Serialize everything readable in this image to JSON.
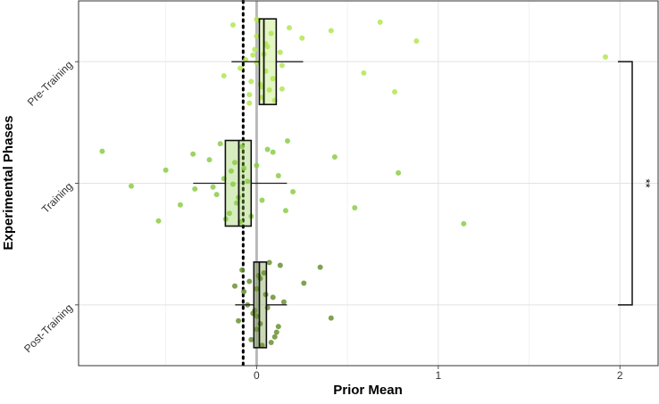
{
  "chart_data": {
    "type": "boxplot",
    "x_label": "Prior Mean",
    "y_label": "Experimental Phases",
    "categories": [
      "Pre-Training",
      "Training",
      "Post-Training"
    ],
    "xlim": [
      -0.98,
      2.21
    ],
    "xticks": [
      0,
      1,
      2
    ],
    "minor_grid": [
      -0.5,
      0.5,
      1.5
    ],
    "grid": true,
    "reference_lines": [
      {
        "value": 0,
        "style": "solid",
        "color": "#aaaaaa"
      },
      {
        "value": -0.074,
        "style": "dotted",
        "color": "#000000"
      }
    ],
    "significance": {
      "label": "**"
    },
    "groups": [
      {
        "color": "#b3e653",
        "q1": 0.015,
        "median": 0.04,
        "q3": 0.108,
        "whisker_low": -0.138,
        "whisker_high": 0.256,
        "points": [
          0.0,
          0.04,
          0.14,
          0.25,
          0.59,
          0.68,
          1.92,
          0.76,
          0.88,
          -0.18,
          -0.13,
          -0.06,
          -0.04,
          0.05,
          0.09,
          0.18,
          0.0,
          0.03,
          0.06,
          -0.03,
          0.41,
          0.14,
          0.1,
          -0.01,
          0.02,
          0.08,
          -0.09,
          -0.04,
          0.13,
          0.03,
          0.0,
          0.05,
          0.01,
          -0.02,
          0.07
        ]
      },
      {
        "color": "#8ccc48",
        "q1": -0.172,
        "median": -0.098,
        "q3": -0.03,
        "whisker_low": -0.349,
        "whisker_high": 0.167,
        "points": [
          -0.85,
          -0.69,
          -0.54,
          -0.5,
          -0.42,
          -0.35,
          -0.34,
          1.14,
          0.78,
          0.54,
          0.43,
          0.2,
          0.17,
          0.12,
          0.16,
          -0.26,
          -0.22,
          -0.2,
          -0.18,
          -0.15,
          -0.12,
          -0.1,
          -0.08,
          -0.05,
          -0.03,
          0.0,
          0.03,
          0.06,
          -0.13,
          -0.17,
          -0.07,
          -0.11,
          0.09,
          -0.24,
          -0.09,
          -0.14
        ]
      },
      {
        "color": "#6a9232",
        "q1": -0.015,
        "median": 0.015,
        "q3": 0.054,
        "whisker_low": -0.118,
        "whisker_high": 0.167,
        "points": [
          0.26,
          0.41,
          0.35,
          0.15,
          0.1,
          -0.12,
          -0.1,
          -0.08,
          -0.05,
          -0.03,
          0.0,
          0.02,
          0.04,
          0.06,
          0.08,
          -0.07,
          0.12,
          0.01,
          -0.01,
          0.03,
          0.05,
          0.0,
          0.02,
          -0.02,
          0.07,
          0.09,
          0.11,
          -0.04,
          0.0,
          0.13
        ]
      }
    ]
  }
}
